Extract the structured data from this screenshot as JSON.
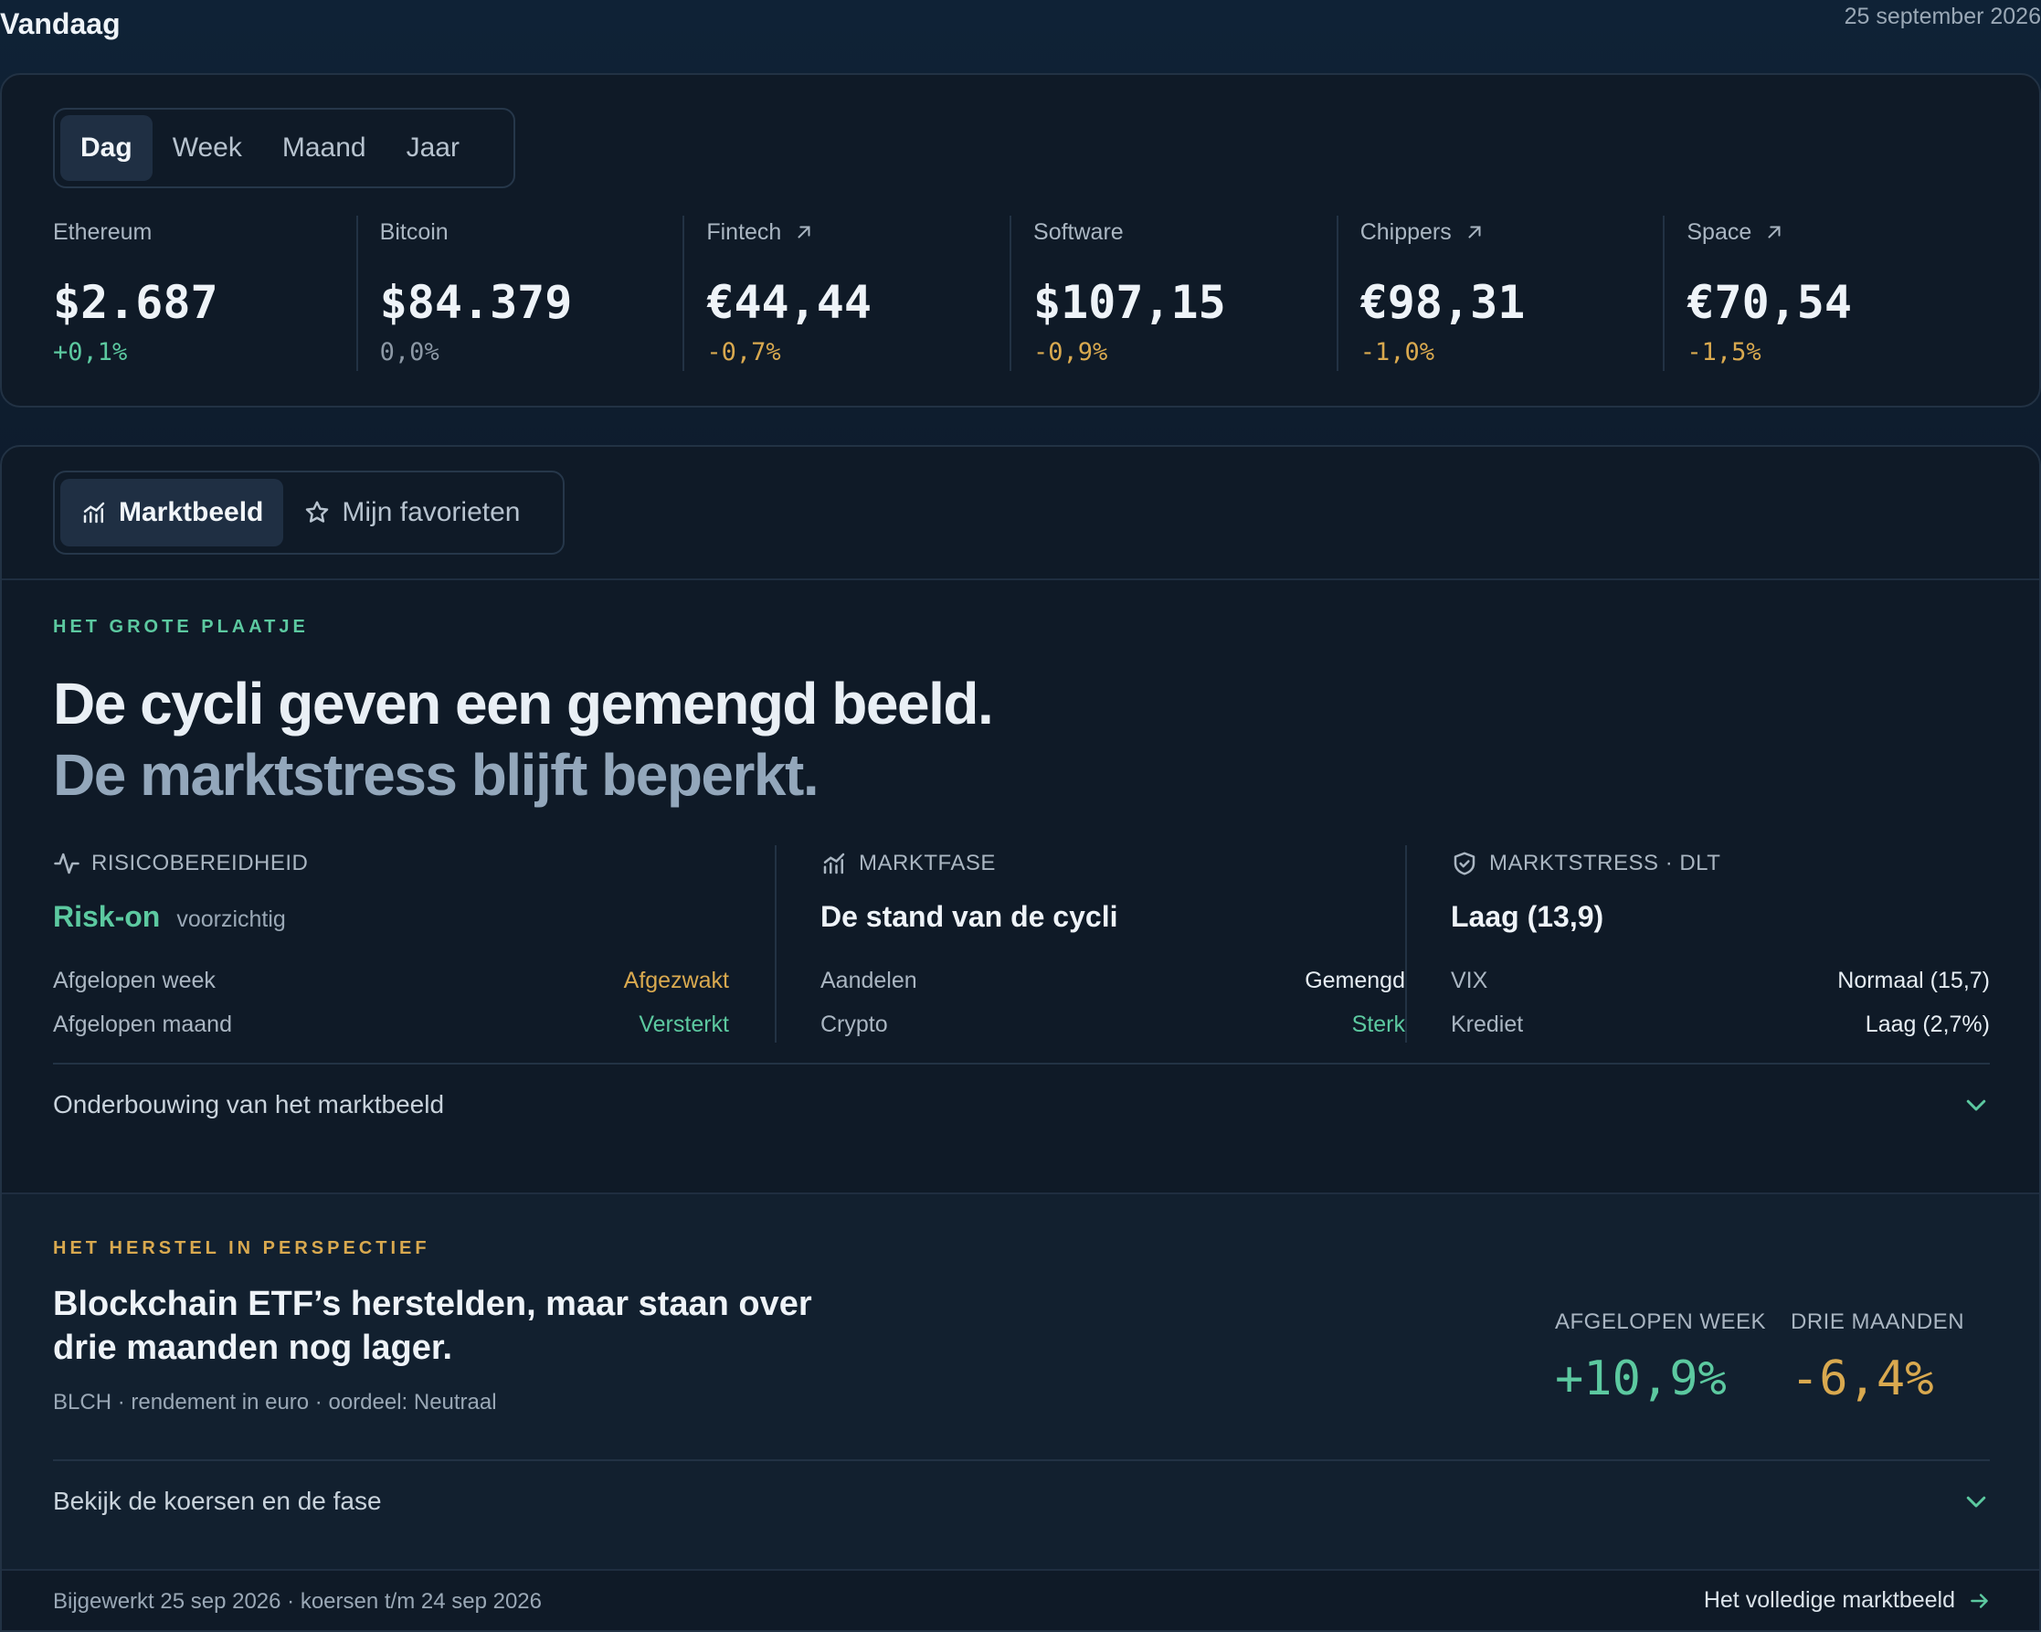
{
  "header": {
    "title": "Vandaag",
    "date": "25 september 2026"
  },
  "periods": [
    {
      "label": "Dag",
      "active": true
    },
    {
      "label": "Week",
      "active": false
    },
    {
      "label": "Maand",
      "active": false
    },
    {
      "label": "Jaar",
      "active": false
    }
  ],
  "tickers": [
    {
      "name": "Ethereum",
      "price": "$2.687",
      "change": "+0,1%",
      "trend": "pos",
      "link": false
    },
    {
      "name": "Bitcoin",
      "price": "$84.379",
      "change": "0,0%",
      "trend": "neu",
      "link": false
    },
    {
      "name": "Fintech",
      "price": "€44,44",
      "change": "-0,7%",
      "trend": "neg",
      "link": true
    },
    {
      "name": "Software",
      "price": "$107,15",
      "change": "-0,9%",
      "trend": "neg",
      "link": false
    },
    {
      "name": "Chippers",
      "price": "€98,31",
      "change": "-1,0%",
      "trend": "neg",
      "link": true
    },
    {
      "name": "Space",
      "price": "€70,54",
      "change": "-1,5%",
      "trend": "neg",
      "link": true
    }
  ],
  "views": {
    "market": "Marktbeeld",
    "favorites": "Mijn favorieten"
  },
  "big_picture": {
    "eyebrow": "HET GROTE PLAATJE",
    "headline_1": "De cycli geven een gemengd beeld.",
    "headline_2": "De marktstress blijft beperkt.",
    "risk": {
      "label": "RISICOBEREIDHEID",
      "value": "Risk-on",
      "sub": "voorzichtig",
      "rows": [
        {
          "k": "Afgelopen week",
          "v": "Afgezwakt",
          "tone": "gold"
        },
        {
          "k": "Afgelopen maand",
          "v": "Versterkt",
          "tone": "green"
        }
      ]
    },
    "phase": {
      "label": "MARKTFASE",
      "value": "De stand van de cycli",
      "rows": [
        {
          "k": "Aandelen",
          "v": "Gemengd",
          "tone": ""
        },
        {
          "k": "Crypto",
          "v": "Sterk",
          "tone": "green"
        }
      ]
    },
    "stress": {
      "label": "MARKTSTRESS · DLT",
      "value": "Laag (13,9)",
      "rows": [
        {
          "k": "VIX",
          "v": "Normaal (15,7)",
          "tone": ""
        },
        {
          "k": "Krediet",
          "v": "Laag (2,7%)",
          "tone": ""
        }
      ]
    },
    "disclosure": "Onderbouwing van het marktbeeld"
  },
  "recovery": {
    "eyebrow": "HET HERSTEL IN PERSPECTIEF",
    "title": "Blockchain ETF’s herstelden, maar staan over drie maanden nog lager.",
    "meta": "BLCH · rendement in euro · oordeel: Neutraal",
    "week_label": "AFGELOPEN WEEK",
    "week_value": "+10,9%",
    "quarter_label": "DRIE MAANDEN",
    "quarter_value": "-6,4%",
    "disclosure": "Bekijk de koersen en de fase"
  },
  "footer": {
    "updated": "Bijgewerkt 25 sep 2026 · koersen t/m 24 sep 2026",
    "link": "Het volledige marktbeeld"
  }
}
